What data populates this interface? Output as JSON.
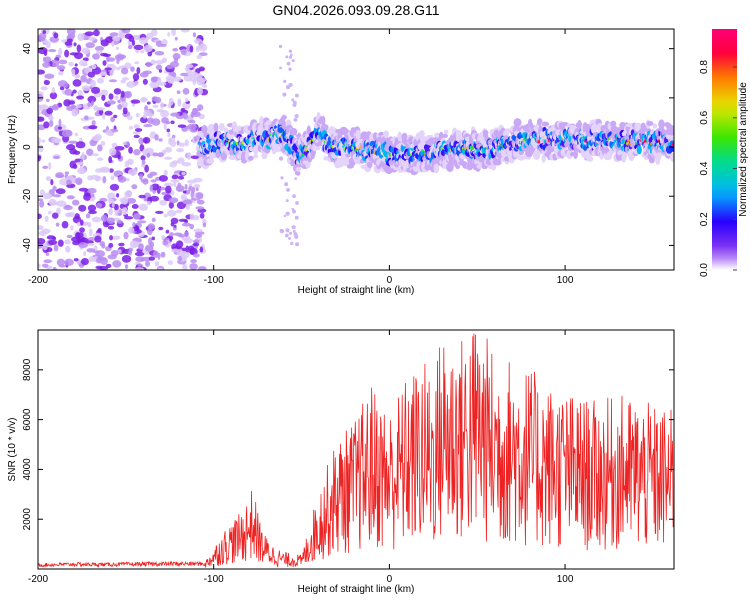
{
  "title": "GN04.2026.093.09.28.G11",
  "colors": {
    "snr_line": "#ee2222",
    "axis": "#000000",
    "scatter": "#8a3cf0"
  },
  "chart_data": [
    {
      "type": "heatmap",
      "title": "GN04.2026.093.09.28.G11",
      "xlabel": "Height of straight line (km)",
      "ylabel": "Frequency (Hz)",
      "xlim": [
        -200,
        162
      ],
      "ylim": [
        -50,
        48
      ],
      "xticks": [
        -200,
        -100,
        0,
        100
      ],
      "yticks": [
        -40,
        -20,
        0,
        20,
        40
      ],
      "colorbar": {
        "label": "Normalized spectral amplitude",
        "range": [
          0,
          0.95
        ],
        "ticks": [
          0.0,
          0.2,
          0.4,
          0.6,
          0.8
        ]
      },
      "ridge": {
        "x": [
          -105,
          -95,
          -85,
          -75,
          -68,
          -60,
          -52,
          -45,
          -40,
          -35,
          -25,
          -15,
          0,
          20,
          40,
          60,
          70,
          80,
          100,
          120,
          140,
          160
        ],
        "frequency": [
          0,
          2,
          1,
          3,
          4,
          5,
          -4,
          1,
          8,
          0,
          0,
          -1,
          -3,
          -2,
          -1,
          -1,
          2,
          3,
          3,
          3,
          2,
          2
        ]
      }
    },
    {
      "type": "line",
      "xlabel": "Height of straight line (km)",
      "ylabel": "SNR (10 * v/v)",
      "xlim": [
        -200,
        162
      ],
      "ylim": [
        0,
        9600
      ],
      "xticks": [
        -200,
        -100,
        0,
        100
      ],
      "yticks": [
        2000,
        4000,
        6000,
        8000
      ],
      "series": [
        {
          "name": "SNR",
          "x": [
            -200,
            -180,
            -160,
            -140,
            -120,
            -105,
            -100,
            -92,
            -85,
            -78,
            -72,
            -66,
            -60,
            -55,
            -50,
            -40,
            -30,
            -20,
            -10,
            0,
            10,
            20,
            25,
            30,
            40,
            50,
            60,
            70,
            80,
            90,
            100,
            110,
            120,
            130,
            140,
            150,
            160
          ],
          "y": [
            150,
            180,
            170,
            190,
            200,
            200,
            600,
            1200,
            1500,
            2200,
            1000,
            650,
            450,
            420,
            380,
            2200,
            3500,
            4000,
            5000,
            4300,
            5200,
            5600,
            5300,
            6500,
            6200,
            6800,
            5800,
            5700,
            5400,
            5000,
            4800,
            4600,
            4500,
            4700,
            4600,
            4400,
            4300
          ]
        }
      ]
    }
  ]
}
